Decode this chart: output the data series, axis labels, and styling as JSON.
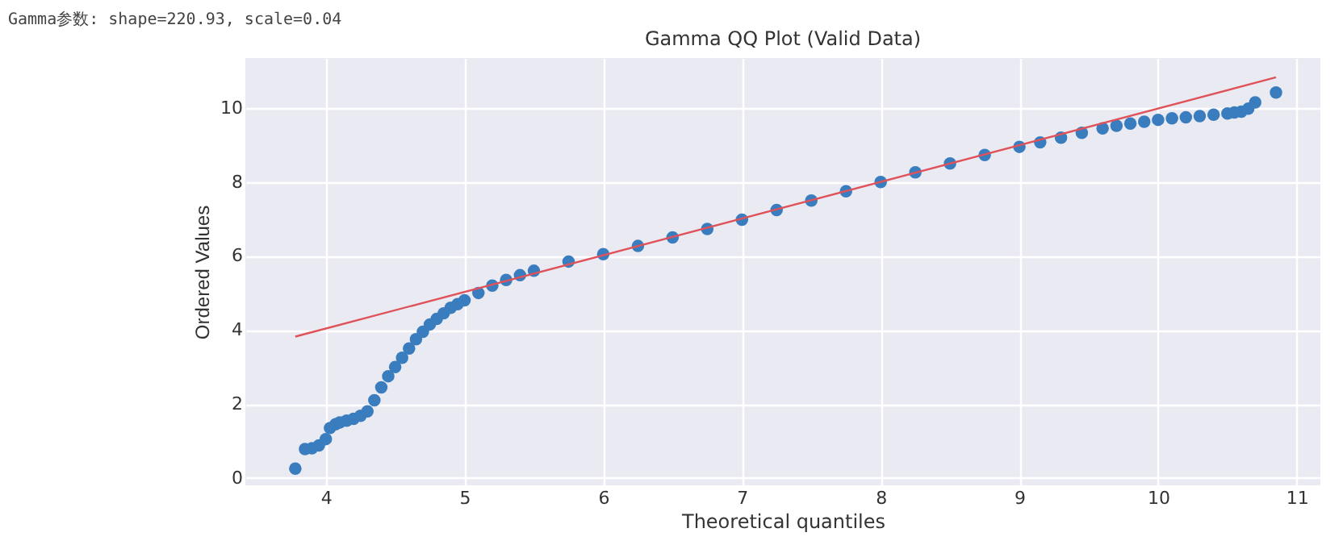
{
  "chart_data": {
    "type": "scatter",
    "title": "Gamma QQ Plot (Valid Data)",
    "xlabel": "Theoretical quantiles",
    "ylabel": "Ordered Values",
    "annotations": [
      "Gamma参数: shape=220.93, scale=0.04"
    ],
    "xlim": [
      3.42,
      11.17
    ],
    "ylim": [
      -0.2,
      11.35
    ],
    "xticks": [
      4,
      5,
      6,
      7,
      8,
      9,
      10,
      11
    ],
    "yticks": [
      0,
      2,
      4,
      6,
      8,
      10
    ],
    "grid": true,
    "marker": "circle",
    "series": [
      {
        "color": "#3a7dbf",
        "x": [
          3.78,
          3.85,
          3.9,
          3.95,
          4.0,
          4.03,
          4.07,
          4.1,
          4.15,
          4.2,
          4.25,
          4.3,
          4.35,
          4.4,
          4.45,
          4.5,
          4.55,
          4.6,
          4.65,
          4.7,
          4.75,
          4.8,
          4.85,
          4.9,
          4.95,
          5.0,
          5.1,
          5.2,
          5.3,
          5.4,
          5.5,
          5.75,
          6.0,
          6.25,
          6.5,
          6.75,
          7.0,
          7.25,
          7.5,
          7.75,
          8.0,
          8.25,
          8.5,
          8.75,
          9.0,
          9.15,
          9.3,
          9.45,
          9.6,
          9.7,
          9.8,
          9.9,
          10.0,
          10.1,
          10.2,
          10.3,
          10.4,
          10.5,
          10.55,
          10.6,
          10.65,
          10.7,
          10.85
        ],
        "values": [
          0.25,
          0.78,
          0.8,
          0.88,
          1.05,
          1.35,
          1.45,
          1.5,
          1.55,
          1.6,
          1.68,
          1.8,
          2.1,
          2.45,
          2.75,
          3.0,
          3.25,
          3.5,
          3.75,
          3.95,
          4.15,
          4.3,
          4.45,
          4.6,
          4.7,
          4.8,
          5.0,
          5.2,
          5.35,
          5.48,
          5.6,
          5.85,
          6.05,
          6.27,
          6.5,
          6.73,
          6.98,
          7.24,
          7.5,
          7.75,
          8.0,
          8.26,
          8.5,
          8.73,
          8.95,
          9.07,
          9.2,
          9.33,
          9.45,
          9.52,
          9.58,
          9.63,
          9.68,
          9.72,
          9.75,
          9.78,
          9.82,
          9.85,
          9.88,
          9.9,
          9.98,
          10.15,
          10.42
        ]
      },
      {
        "type": "line",
        "color": "#e0525a",
        "line_style": "solid",
        "marker": "none",
        "x": [
          3.78,
          10.85
        ],
        "values": [
          3.82,
          10.83
        ]
      }
    ]
  }
}
